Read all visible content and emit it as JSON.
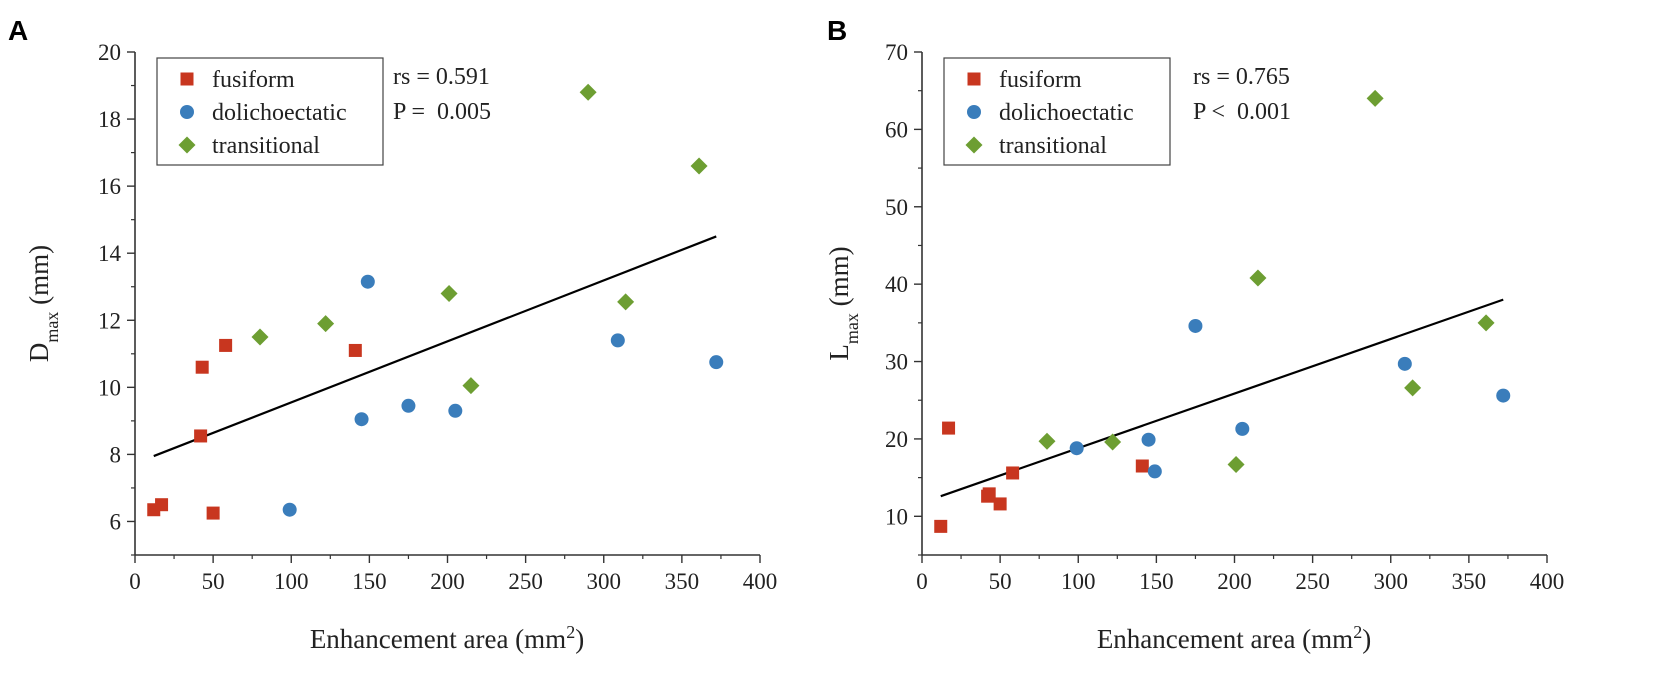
{
  "figure": {
    "panels": [
      "A",
      "B"
    ],
    "colors": {
      "fusiform": "#c8361f",
      "dolichoectatic": "#3a7dbb",
      "transitional": "#6d9e32",
      "fit_line": "#000000",
      "axis": "#333333"
    }
  },
  "chart_data": [
    {
      "type": "scatter",
      "panel": "A",
      "xlabel": "Enhancement area (mm",
      "xlabel_sup": "2",
      "xlabel_end": ")",
      "ylabel": "D",
      "ylabel_sub": "max",
      "ylabel_end": " (mm)",
      "xlim": [
        0,
        400
      ],
      "ylim": [
        5,
        20
      ],
      "xticks": [
        0,
        50,
        100,
        150,
        200,
        250,
        300,
        350,
        400
      ],
      "yticks": [
        6,
        8,
        10,
        12,
        14,
        16,
        18,
        20
      ],
      "legend": [
        "fusiform",
        "dolichoectatic",
        "transitional"
      ],
      "legend_position": "top-left",
      "stats": [
        "rs = 0.591",
        "P =  0.005"
      ],
      "fit": [
        [
          12,
          7.95
        ],
        [
          372,
          14.5
        ]
      ],
      "series": [
        {
          "name": "fusiform",
          "marker": "square",
          "points": [
            [
              12,
              6.35
            ],
            [
              17,
              6.5
            ],
            [
              42,
              8.55
            ],
            [
              43,
              10.6
            ],
            [
              50,
              6.25
            ],
            [
              58,
              11.25
            ],
            [
              141,
              11.1
            ]
          ]
        },
        {
          "name": "dolichoectatic",
          "marker": "circle",
          "points": [
            [
              99,
              6.35
            ],
            [
              145,
              9.05
            ],
            [
              149,
              13.15
            ],
            [
              175,
              9.45
            ],
            [
              205,
              9.3
            ],
            [
              309,
              11.4
            ],
            [
              372,
              10.75
            ]
          ]
        },
        {
          "name": "transitional",
          "marker": "diamond",
          "points": [
            [
              80,
              11.5
            ],
            [
              122,
              11.9
            ],
            [
              201,
              12.8
            ],
            [
              215,
              10.05
            ],
            [
              290,
              18.8
            ],
            [
              314,
              12.55
            ],
            [
              361,
              16.6
            ]
          ]
        }
      ]
    },
    {
      "type": "scatter",
      "panel": "B",
      "xlabel": "Enhancement area (mm",
      "xlabel_sup": "2",
      "xlabel_end": ")",
      "ylabel": "L",
      "ylabel_sub": "max",
      "ylabel_end": " (mm)",
      "xlim": [
        0,
        400
      ],
      "ylim": [
        5,
        70
      ],
      "xticks": [
        0,
        50,
        100,
        150,
        200,
        250,
        300,
        350,
        400
      ],
      "yticks": [
        10,
        20,
        30,
        40,
        50,
        60,
        70
      ],
      "legend": [
        "fusiform",
        "dolichoectatic",
        "transitional"
      ],
      "legend_position": "top-left",
      "stats": [
        "rs = 0.765",
        "P <  0.001"
      ],
      "fit": [
        [
          12,
          12.6
        ],
        [
          372,
          38.0
        ]
      ],
      "series": [
        {
          "name": "fusiform",
          "marker": "square",
          "points": [
            [
              12,
              8.7
            ],
            [
              17,
              21.4
            ],
            [
              42,
              12.6
            ],
            [
              43,
              12.9
            ],
            [
              50,
              11.6
            ],
            [
              58,
              15.6
            ],
            [
              141,
              16.5
            ]
          ]
        },
        {
          "name": "dolichoectatic",
          "marker": "circle",
          "points": [
            [
              99,
              18.8
            ],
            [
              145,
              19.9
            ],
            [
              149,
              15.8
            ],
            [
              175,
              34.6
            ],
            [
              205,
              21.3
            ],
            [
              309,
              29.7
            ],
            [
              372,
              25.6
            ]
          ]
        },
        {
          "name": "transitional",
          "marker": "diamond",
          "points": [
            [
              80,
              19.7
            ],
            [
              122,
              19.6
            ],
            [
              201,
              16.7
            ],
            [
              215,
              40.8
            ],
            [
              290,
              64.0
            ],
            [
              314,
              26.6
            ],
            [
              361,
              35.0
            ]
          ]
        }
      ]
    }
  ]
}
